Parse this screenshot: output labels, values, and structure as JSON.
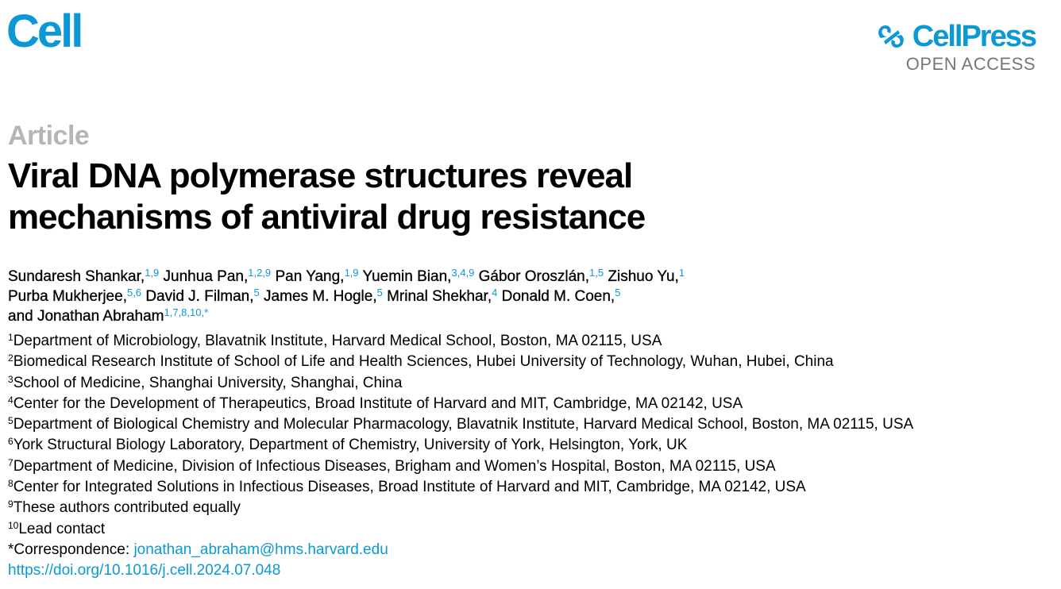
{
  "journal": {
    "logo": "Cell"
  },
  "publisher": {
    "logo": "CellPress",
    "access": "OPEN ACCESS",
    "brand_color": "#0b98d4"
  },
  "article_type": "Article",
  "title_lines": [
    "Viral DNA polymerase structures reveal",
    "mechanisms of antiviral drug resistance"
  ],
  "authors": [
    {
      "name": "Sundaresh Shankar,",
      "sup": "1,9"
    },
    {
      "name": "Junhua Pan,",
      "sup": "1,2,9"
    },
    {
      "name": "Pan Yang,",
      "sup": "1,9"
    },
    {
      "name": "Yuemin Bian,",
      "sup": "3,4,9"
    },
    {
      "name": "Gábor Oroszlán,",
      "sup": "1,5"
    },
    {
      "name": "Zishuo Yu,",
      "sup": "1"
    },
    {
      "name": "Purba Mukherjee,",
      "sup": "5,6"
    },
    {
      "name": "David J. Filman,",
      "sup": "5"
    },
    {
      "name": "James M. Hogle,",
      "sup": "5"
    },
    {
      "name": "Mrinal Shekhar,",
      "sup": "4"
    },
    {
      "name": "Donald M. Coen,",
      "sup": "5"
    },
    {
      "name": "and Jonathan Abraham",
      "sup": "1,7,8,10,*"
    }
  ],
  "affiliations": [
    {
      "n": "1",
      "text": "Department of Microbiology, Blavatnik Institute, Harvard Medical School, Boston, MA 02115, USA"
    },
    {
      "n": "2",
      "text": "Biomedical Research Institute of School of Life and Health Sciences, Hubei University of Technology, Wuhan, Hubei, China"
    },
    {
      "n": "3",
      "text": "School of Medicine, Shanghai University, Shanghai, China"
    },
    {
      "n": "4",
      "text": "Center for the Development of Therapeutics, Broad Institute of Harvard and MIT, Cambridge, MA 02142, USA"
    },
    {
      "n": "5",
      "text": "Department of Biological Chemistry and Molecular Pharmacology, Blavatnik Institute, Harvard Medical School, Boston, MA 02115, USA"
    },
    {
      "n": "6",
      "text": "York Structural Biology Laboratory, Department of Chemistry, University of York, Helsington, York, UK"
    },
    {
      "n": "7",
      "text": "Department of Medicine, Division of Infectious Diseases, Brigham and Women’s Hospital, Boston, MA 02115, USA"
    },
    {
      "n": "8",
      "text": "Center for Integrated Solutions in Infectious Diseases, Broad Institute of Harvard and MIT, Cambridge, MA 02142, USA"
    },
    {
      "n": "9",
      "text": "These authors contributed equally"
    },
    {
      "n": "10",
      "text": "Lead contact"
    }
  ],
  "correspondence": {
    "label": "*Correspondence: ",
    "email": "jonathan_abraham@hms.harvard.edu"
  },
  "doi": "https://doi.org/10.1016/j.cell.2024.07.048"
}
